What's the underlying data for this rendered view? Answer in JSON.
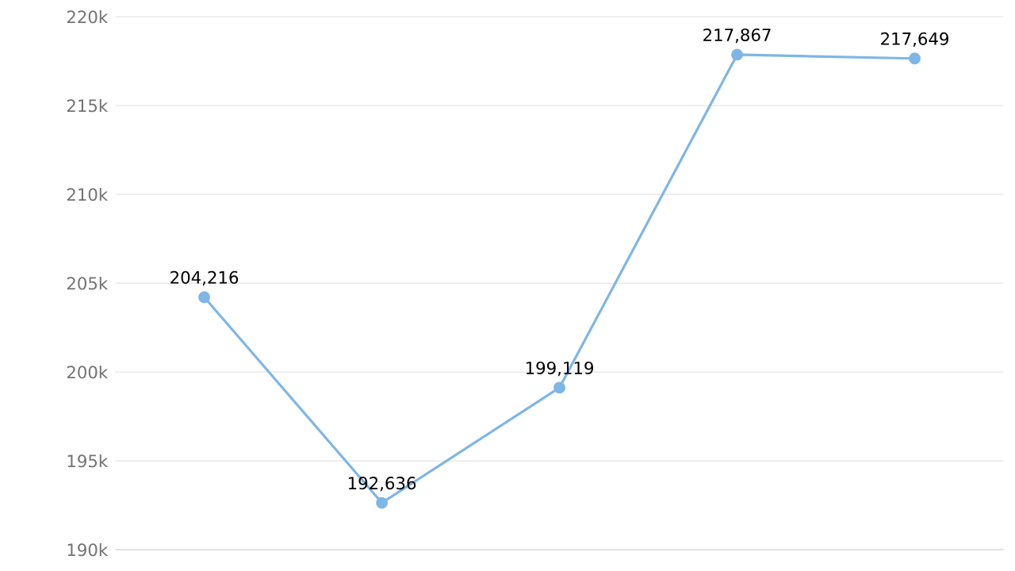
{
  "chart_data": {
    "type": "line",
    "categories": [
      null,
      null,
      null,
      null,
      null
    ],
    "series": [
      {
        "color": "#7eb6e6",
        "values": [
          204216,
          192636,
          199119,
          217867,
          217649
        ],
        "value_labels": [
          "204,216",
          "192,636",
          "199,119",
          "217,867",
          "217,649"
        ]
      }
    ],
    "ylim": [
      190000,
      220000
    ],
    "yticks": [
      {
        "value": 190000,
        "label": "190k"
      },
      {
        "value": 195000,
        "label": "195k"
      },
      {
        "value": 200000,
        "label": "200k"
      },
      {
        "value": 205000,
        "label": "205k"
      },
      {
        "value": 210000,
        "label": "210k"
      },
      {
        "value": 215000,
        "label": "215k"
      },
      {
        "value": 220000,
        "label": "220k"
      }
    ],
    "grid": "y",
    "marker": "circle",
    "line_style": "solid"
  }
}
